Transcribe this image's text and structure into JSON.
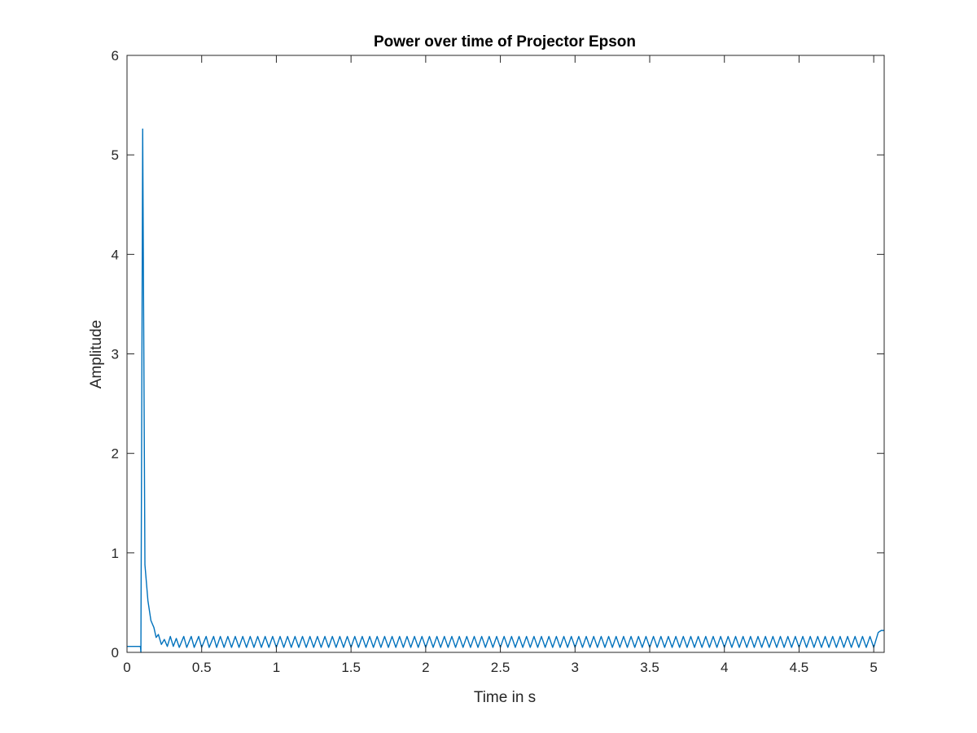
{
  "chart_data": {
    "type": "line",
    "title": "Power over time of Projector Epson",
    "xlabel": "Time in s",
    "ylabel": "Amplitude",
    "xlim": [
      0,
      5.07
    ],
    "ylim": [
      0,
      6
    ],
    "xticks": [
      0,
      0.5,
      1,
      1.5,
      2,
      2.5,
      3,
      3.5,
      4,
      4.5,
      5
    ],
    "xtick_labels": [
      "0",
      "0.5",
      "1",
      "1.5",
      "2",
      "2.5",
      "3",
      "3.5",
      "4",
      "4.5",
      "5"
    ],
    "yticks": [
      0,
      1,
      2,
      3,
      4,
      5,
      6
    ],
    "ytick_labels": [
      "0",
      "1",
      "2",
      "3",
      "4",
      "5",
      "6"
    ],
    "grid": false,
    "box": true,
    "series": [
      {
        "color": "#0072BD",
        "points": [
          [
            0,
            0.06
          ],
          [
            0.09,
            0.06
          ],
          [
            0.093,
            0.0
          ],
          [
            0.105,
            5.26
          ],
          [
            0.12,
            0.88
          ],
          [
            0.14,
            0.52
          ],
          [
            0.16,
            0.32
          ],
          [
            0.18,
            0.25
          ],
          [
            0.195,
            0.15
          ],
          [
            0.21,
            0.18
          ],
          [
            0.23,
            0.08
          ],
          [
            0.25,
            0.13
          ],
          [
            0.27,
            0.06
          ],
          [
            0.29,
            0.16
          ],
          [
            0.31,
            0.06
          ],
          [
            0.33,
            0.14
          ],
          [
            0.35,
            0.05
          ],
          [
            0.38,
            0.16
          ],
          [
            0.4,
            0.05
          ],
          [
            0.43,
            0.16
          ],
          [
            0.45,
            0.05
          ],
          [
            0.48,
            0.16
          ],
          [
            0.5,
            0.05
          ],
          [
            0.53,
            0.16
          ],
          [
            0.55,
            0.05
          ],
          [
            0.58,
            0.16
          ],
          [
            0.6,
            0.05
          ]
        ],
        "oscillation": {
          "from": 0.6,
          "to": 5.0,
          "period": 0.05,
          "low": 0.05,
          "high": 0.16
        },
        "tail": [
          [
            5.0,
            0.05
          ],
          [
            5.03,
            0.2
          ],
          [
            5.05,
            0.22
          ],
          [
            5.07,
            0.22
          ]
        ]
      }
    ]
  }
}
